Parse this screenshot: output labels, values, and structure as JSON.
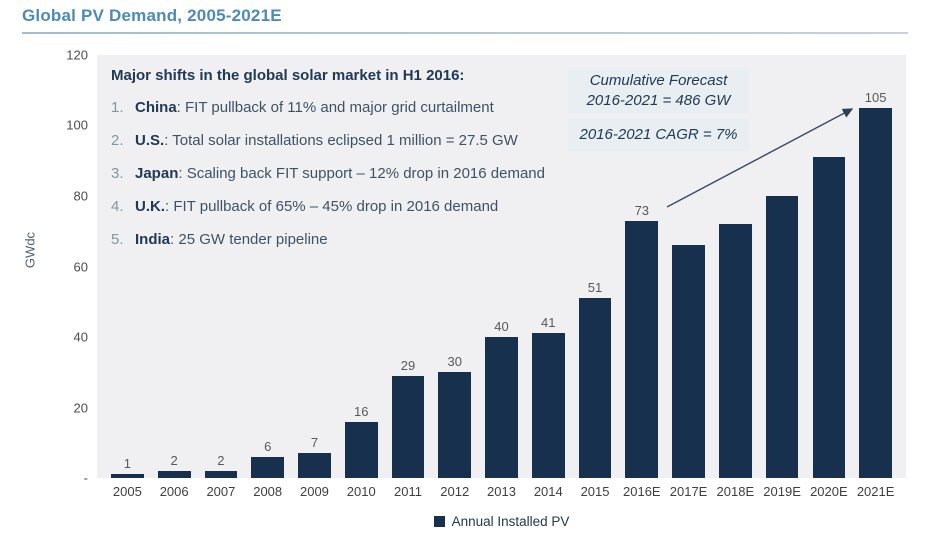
{
  "title": "Global PV Demand, 2005-2021E",
  "colors": {
    "title_blue": "#4e8ab9",
    "bar_navy": "#16304e",
    "plot_background": "#f0f0f2",
    "callout_background": "#e9eef2",
    "dark_navy_text": "#203a54",
    "body_text": "#3d5265",
    "list_number_blue": "#7d97ab",
    "axis_text": "#4d4d4d"
  },
  "annotation": {
    "heading": "Major shifts in the global solar market in H1 2016:",
    "items": [
      {
        "num": "1.",
        "country": "China",
        "text": ": FIT pullback of 11% and major grid curtailment"
      },
      {
        "num": "2.",
        "country": "U.S.",
        "text": ": Total solar installations eclipsed 1 million = 27.5 GW"
      },
      {
        "num": "3.",
        "country": "Japan",
        "text": ": Scaling back FIT support – 12% drop in 2016 demand"
      },
      {
        "num": "4.",
        "country": "U.K.",
        "text": ": FIT pullback of 65% – 45% drop in 2016 demand"
      },
      {
        "num": "5.",
        "country": "India",
        "text": ": 25 GW tender pipeline"
      }
    ]
  },
  "callouts": {
    "box1_line1": "Cumulative Forecast",
    "box1_line2": "2016-2021 = 486 GW",
    "box2": "2016-2021 CAGR = 7%"
  },
  "chart_data": {
    "type": "bar",
    "title": "Global PV Demand, 2005-2021E",
    "xlabel": "",
    "ylabel": "GWdc",
    "ylim": [
      0,
      120
    ],
    "yticks": [
      120,
      100,
      80,
      60,
      40,
      20,
      0
    ],
    "ytick_labels": [
      "120",
      "100",
      "80",
      "60",
      "40",
      "20",
      "-"
    ],
    "categories": [
      "2005",
      "2006",
      "2007",
      "2008",
      "2009",
      "2010",
      "2011",
      "2012",
      "2013",
      "2014",
      "2015",
      "2016E",
      "2017E",
      "2018E",
      "2019E",
      "2020E",
      "2021E"
    ],
    "values": [
      1,
      2,
      2,
      6,
      7,
      16,
      29,
      30,
      40,
      41,
      51,
      73,
      66,
      72,
      80,
      91,
      105
    ],
    "bar_labels": [
      "1",
      "2",
      "2",
      "6",
      "7",
      "16",
      "29",
      "30",
      "40",
      "41",
      "51",
      "73",
      "",
      "",
      "",
      "",
      "105"
    ],
    "legend": [
      "Annual Installed PV"
    ],
    "legend_position": "bottom",
    "grid": false,
    "annotation_arrow": {
      "from_label": "73",
      "to_label": "105"
    }
  }
}
